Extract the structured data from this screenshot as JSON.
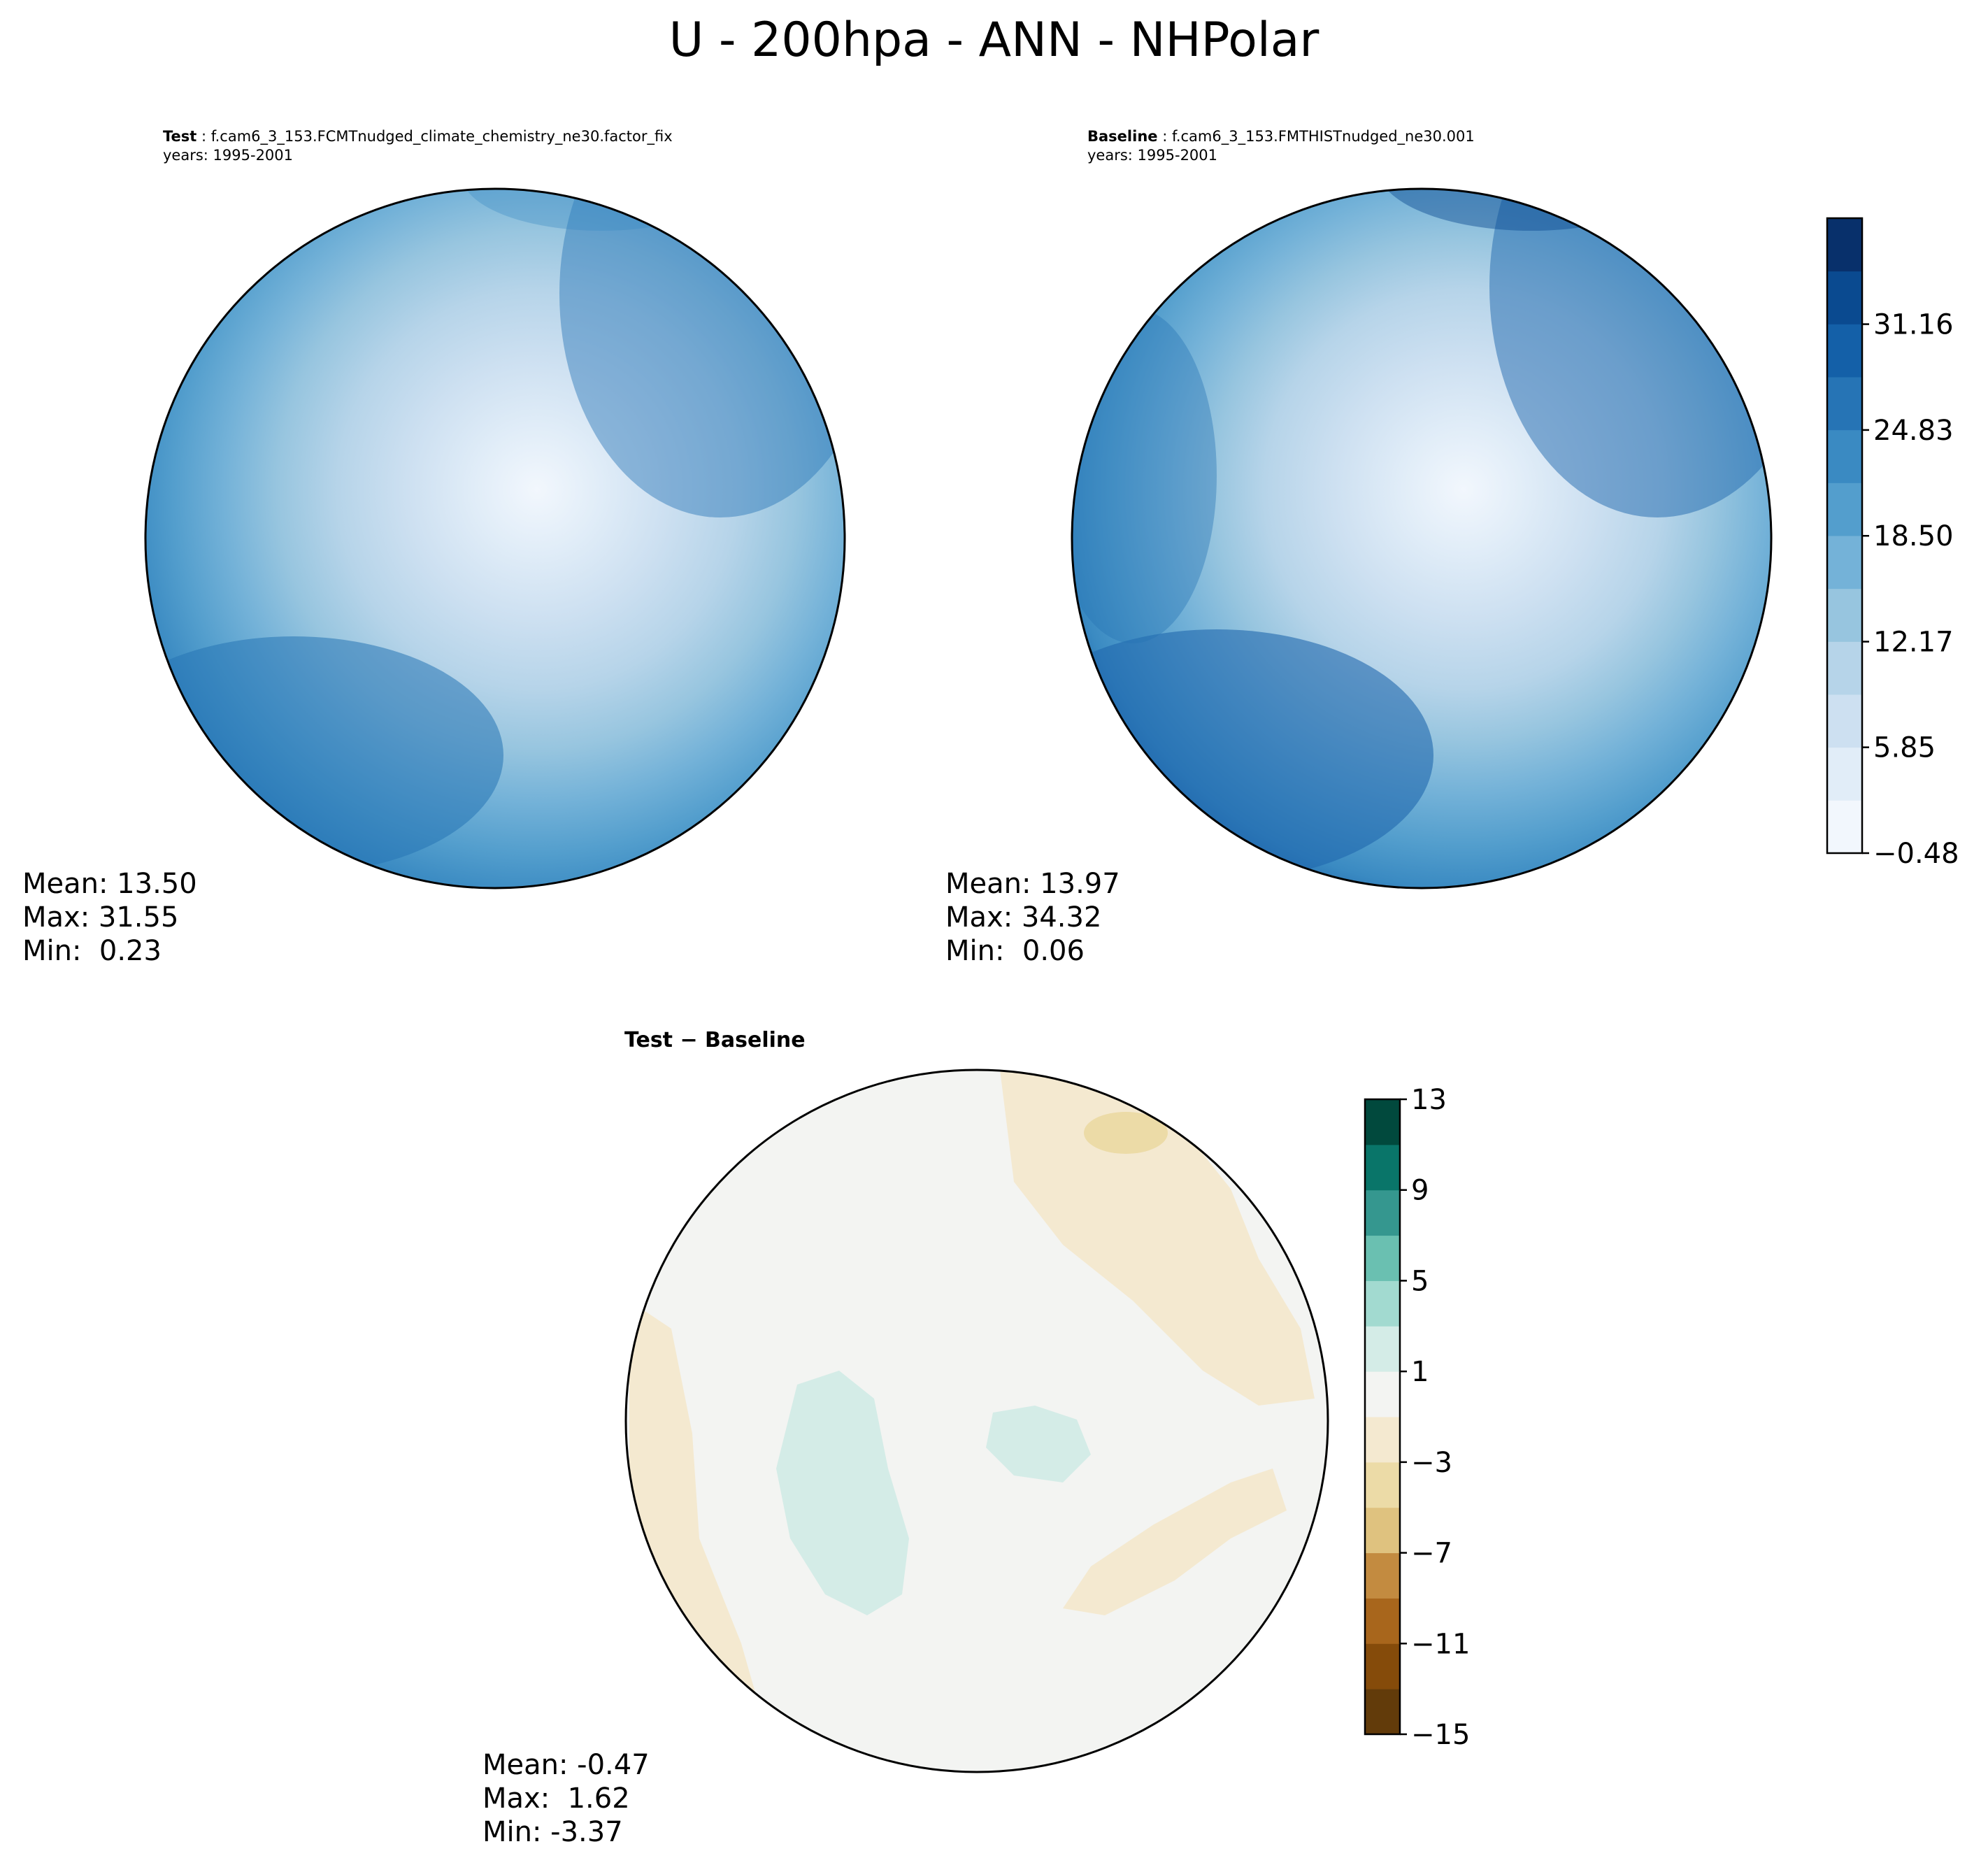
{
  "title": "U - 200hpa - ANN - NHPolar",
  "panels": {
    "test": {
      "label": "Test",
      "case": "f.cam6_3_153.FCMTnudged_climate_chemistry_ne30.factor_fix",
      "years": "years: 1995-2001",
      "mean": "Mean: 13.50",
      "max": "Max: 31.55",
      "min": "Min:  0.23"
    },
    "baseline": {
      "label": "Baseline",
      "case": "f.cam6_3_153.FMTHISTnudged_ne30.001",
      "years": "years: 1995-2001",
      "mean": "Mean: 13.97",
      "max": "Max: 34.32",
      "min": "Min:  0.06"
    },
    "diff": {
      "title": "Test − Baseline",
      "mean": "Mean: -0.47",
      "max": "Max:  1.62",
      "min": "Min: -3.37"
    }
  },
  "chart_data": [
    {
      "type": "heatmap",
      "name": "Test",
      "projection": "north polar stereographic",
      "colormap": "Blues",
      "stats": {
        "mean": 13.5,
        "max": 31.55,
        "min": 0.23
      },
      "colorbar": {
        "ticks": [
          -0.48,
          5.85,
          12.17,
          18.5,
          24.83,
          31.16
        ],
        "tick_labels": [
          "−0.48",
          "5.85",
          "12.17",
          "18.50",
          "24.83",
          "31.16"
        ],
        "colors": [
          "#f2f7fd",
          "#e1edf8",
          "#cde0f1",
          "#b6d4e9",
          "#97c5df",
          "#74b2d8",
          "#539ecd",
          "#3a8ac2",
          "#2674b5",
          "#1460a8",
          "#0a4a90",
          "#08306b"
        ]
      }
    },
    {
      "type": "heatmap",
      "name": "Baseline",
      "projection": "north polar stereographic",
      "colormap": "Blues",
      "stats": {
        "mean": 13.97,
        "max": 34.32,
        "min": 0.06
      }
    },
    {
      "type": "heatmap",
      "name": "Test − Baseline",
      "projection": "north polar stereographic",
      "colormap": "BrBG",
      "stats": {
        "mean": -0.47,
        "max": 1.62,
        "min": -3.37
      },
      "colorbar": {
        "ticks": [
          -15,
          -11,
          -7,
          -3,
          1,
          5,
          9,
          13
        ],
        "tick_labels": [
          "−15",
          "−11",
          "−7",
          "−3",
          "1",
          "5",
          "9",
          "13"
        ],
        "colors": [
          "#623b0a",
          "#854b0a",
          "#a8661c",
          "#c38b40",
          "#dfc27f",
          "#ecdba7",
          "#f4e9d0",
          "#f3f4f2",
          "#d4ece7",
          "#a2dad0",
          "#6ac0b1",
          "#35978f",
          "#097569",
          "#01493d"
        ]
      }
    }
  ]
}
